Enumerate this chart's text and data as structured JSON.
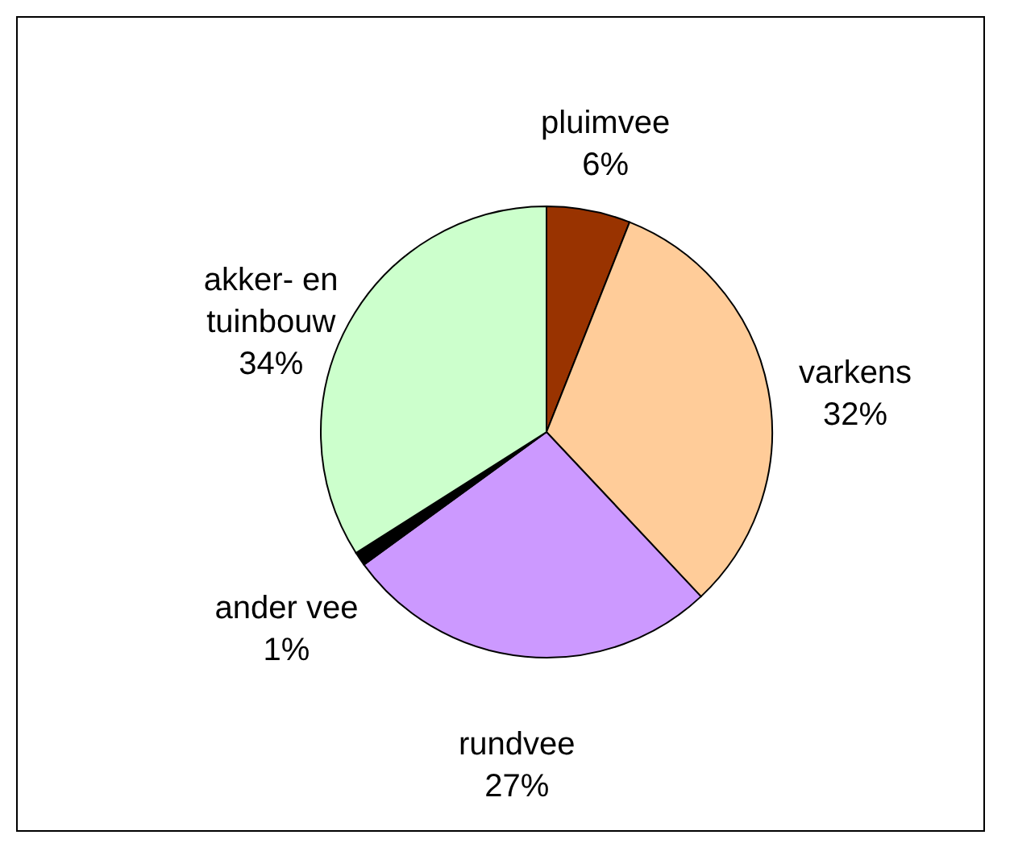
{
  "chart_data": {
    "type": "pie",
    "categories": [
      "pluimvee",
      "varkens",
      "rundvee",
      "ander vee",
      "akker- en tuinbouw"
    ],
    "values": [
      6,
      32,
      27,
      1,
      34
    ],
    "value_labels": [
      "6%",
      "32%",
      "27%",
      "1%",
      "34%"
    ],
    "colors": [
      "#993300",
      "#ffcc99",
      "#cc99ff",
      "#000000",
      "#ccffcc"
    ],
    "legend": false
  }
}
